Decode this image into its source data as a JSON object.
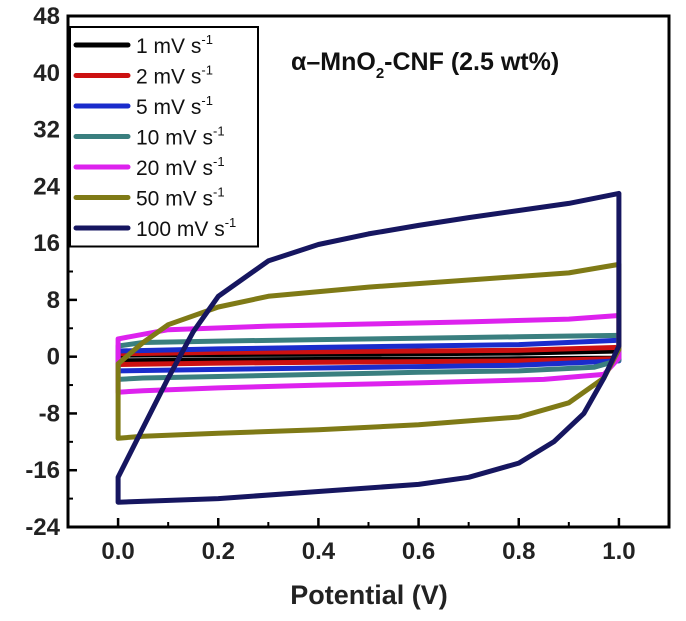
{
  "chart_data": {
    "type": "line",
    "xlabel": "Potential (V)",
    "ylabel": "",
    "xlim": [
      -0.1,
      1.1
    ],
    "ylim": [
      -24,
      48
    ],
    "x_ticks": [
      "0.0",
      "0.2",
      "0.4",
      "0.6",
      "0.8",
      "1.0"
    ],
    "y_ticks": [
      "-24",
      "-16",
      "-8",
      "0",
      "8",
      "16",
      "24",
      "32",
      "40",
      "48"
    ],
    "annotation": {
      "prefix": "α–MnO",
      "subscript": "2",
      "suffix": "-CNF (2.5 wt%)"
    },
    "legend_position": "top-left",
    "grid": false,
    "series": [
      {
        "name": "1 mV s",
        "superscript": "-1",
        "color": "#000000",
        "upper": [
          [
            0.0,
            0.2
          ],
          [
            0.2,
            0.3
          ],
          [
            0.4,
            0.35
          ],
          [
            0.6,
            0.4
          ],
          [
            0.8,
            0.5
          ],
          [
            1.0,
            0.8
          ]
        ],
        "lower": [
          [
            1.0,
            -0.2
          ],
          [
            0.8,
            -0.3
          ],
          [
            0.6,
            -0.35
          ],
          [
            0.4,
            -0.4
          ],
          [
            0.2,
            -0.45
          ],
          [
            0.0,
            -0.6
          ]
        ]
      },
      {
        "name": "2 mV s",
        "superscript": "-1",
        "color": "#cc1111",
        "upper": [
          [
            0.0,
            0.4
          ],
          [
            0.2,
            0.6
          ],
          [
            0.4,
            0.7
          ],
          [
            0.6,
            0.8
          ],
          [
            0.8,
            0.9
          ],
          [
            1.0,
            1.3
          ]
        ],
        "lower": [
          [
            1.0,
            -0.3
          ],
          [
            0.8,
            -0.6
          ],
          [
            0.6,
            -0.7
          ],
          [
            0.4,
            -0.8
          ],
          [
            0.2,
            -0.9
          ],
          [
            0.0,
            -1.1
          ]
        ]
      },
      {
        "name": "5 mV s",
        "superscript": "-1",
        "color": "#1a2ccc",
        "upper": [
          [
            0.0,
            0.8
          ],
          [
            0.2,
            1.1
          ],
          [
            0.4,
            1.3
          ],
          [
            0.6,
            1.5
          ],
          [
            0.8,
            1.7
          ],
          [
            1.0,
            2.3
          ]
        ],
        "lower": [
          [
            1.0,
            -0.6
          ],
          [
            0.8,
            -1.2
          ],
          [
            0.6,
            -1.4
          ],
          [
            0.4,
            -1.6
          ],
          [
            0.2,
            -1.8
          ],
          [
            0.0,
            -2.0
          ]
        ]
      },
      {
        "name": "10 mV s",
        "superscript": "-1",
        "color": "#3a7f7f",
        "upper": [
          [
            0.0,
            1.5
          ],
          [
            0.05,
            2.0
          ],
          [
            0.2,
            2.2
          ],
          [
            0.4,
            2.4
          ],
          [
            0.6,
            2.6
          ],
          [
            0.8,
            2.8
          ],
          [
            1.0,
            3.0
          ]
        ],
        "lower": [
          [
            1.0,
            -0.5
          ],
          [
            0.95,
            -1.5
          ],
          [
            0.8,
            -2.0
          ],
          [
            0.6,
            -2.2
          ],
          [
            0.4,
            -2.5
          ],
          [
            0.2,
            -2.8
          ],
          [
            0.05,
            -3.0
          ],
          [
            0.0,
            -3.2
          ]
        ]
      },
      {
        "name": "20 mV s",
        "superscript": "-1",
        "color": "#dd22ee",
        "upper": [
          [
            0.0,
            2.5
          ],
          [
            0.1,
            3.8
          ],
          [
            0.3,
            4.3
          ],
          [
            0.5,
            4.6
          ],
          [
            0.7,
            4.9
          ],
          [
            0.9,
            5.3
          ],
          [
            1.0,
            5.8
          ]
        ],
        "lower": [
          [
            1.0,
            -0.2
          ],
          [
            0.97,
            -2.5
          ],
          [
            0.85,
            -3.2
          ],
          [
            0.6,
            -3.7
          ],
          [
            0.4,
            -4.0
          ],
          [
            0.2,
            -4.4
          ],
          [
            0.05,
            -4.8
          ],
          [
            0.0,
            -5.0
          ]
        ]
      },
      {
        "name": "50 mV s",
        "superscript": "-1",
        "color": "#7f7a16",
        "upper": [
          [
            0.0,
            -1.0
          ],
          [
            0.05,
            2.0
          ],
          [
            0.1,
            4.5
          ],
          [
            0.2,
            7.0
          ],
          [
            0.3,
            8.5
          ],
          [
            0.5,
            9.8
          ],
          [
            0.7,
            10.8
          ],
          [
            0.9,
            11.8
          ],
          [
            1.0,
            13.0
          ]
        ],
        "lower": [
          [
            1.0,
            1.0
          ],
          [
            0.97,
            -3.0
          ],
          [
            0.9,
            -6.5
          ],
          [
            0.8,
            -8.5
          ],
          [
            0.6,
            -9.6
          ],
          [
            0.4,
            -10.3
          ],
          [
            0.2,
            -10.8
          ],
          [
            0.05,
            -11.2
          ],
          [
            0.0,
            -11.5
          ]
        ]
      },
      {
        "name": "100 mV s",
        "superscript": "-1",
        "color": "#161660",
        "upper": [
          [
            0.0,
            -17.0
          ],
          [
            0.05,
            -10.0
          ],
          [
            0.1,
            -3.0
          ],
          [
            0.15,
            3.5
          ],
          [
            0.2,
            8.5
          ],
          [
            0.3,
            13.5
          ],
          [
            0.4,
            15.8
          ],
          [
            0.5,
            17.3
          ],
          [
            0.6,
            18.5
          ],
          [
            0.7,
            19.6
          ],
          [
            0.8,
            20.6
          ],
          [
            0.9,
            21.6
          ],
          [
            1.0,
            23.0
          ]
        ],
        "lower": [
          [
            1.0,
            1.5
          ],
          [
            0.97,
            -3.0
          ],
          [
            0.93,
            -8.0
          ],
          [
            0.87,
            -12.0
          ],
          [
            0.8,
            -15.0
          ],
          [
            0.7,
            -17.0
          ],
          [
            0.6,
            -18.0
          ],
          [
            0.4,
            -19.0
          ],
          [
            0.2,
            -20.0
          ],
          [
            0.0,
            -20.5
          ]
        ]
      }
    ]
  }
}
